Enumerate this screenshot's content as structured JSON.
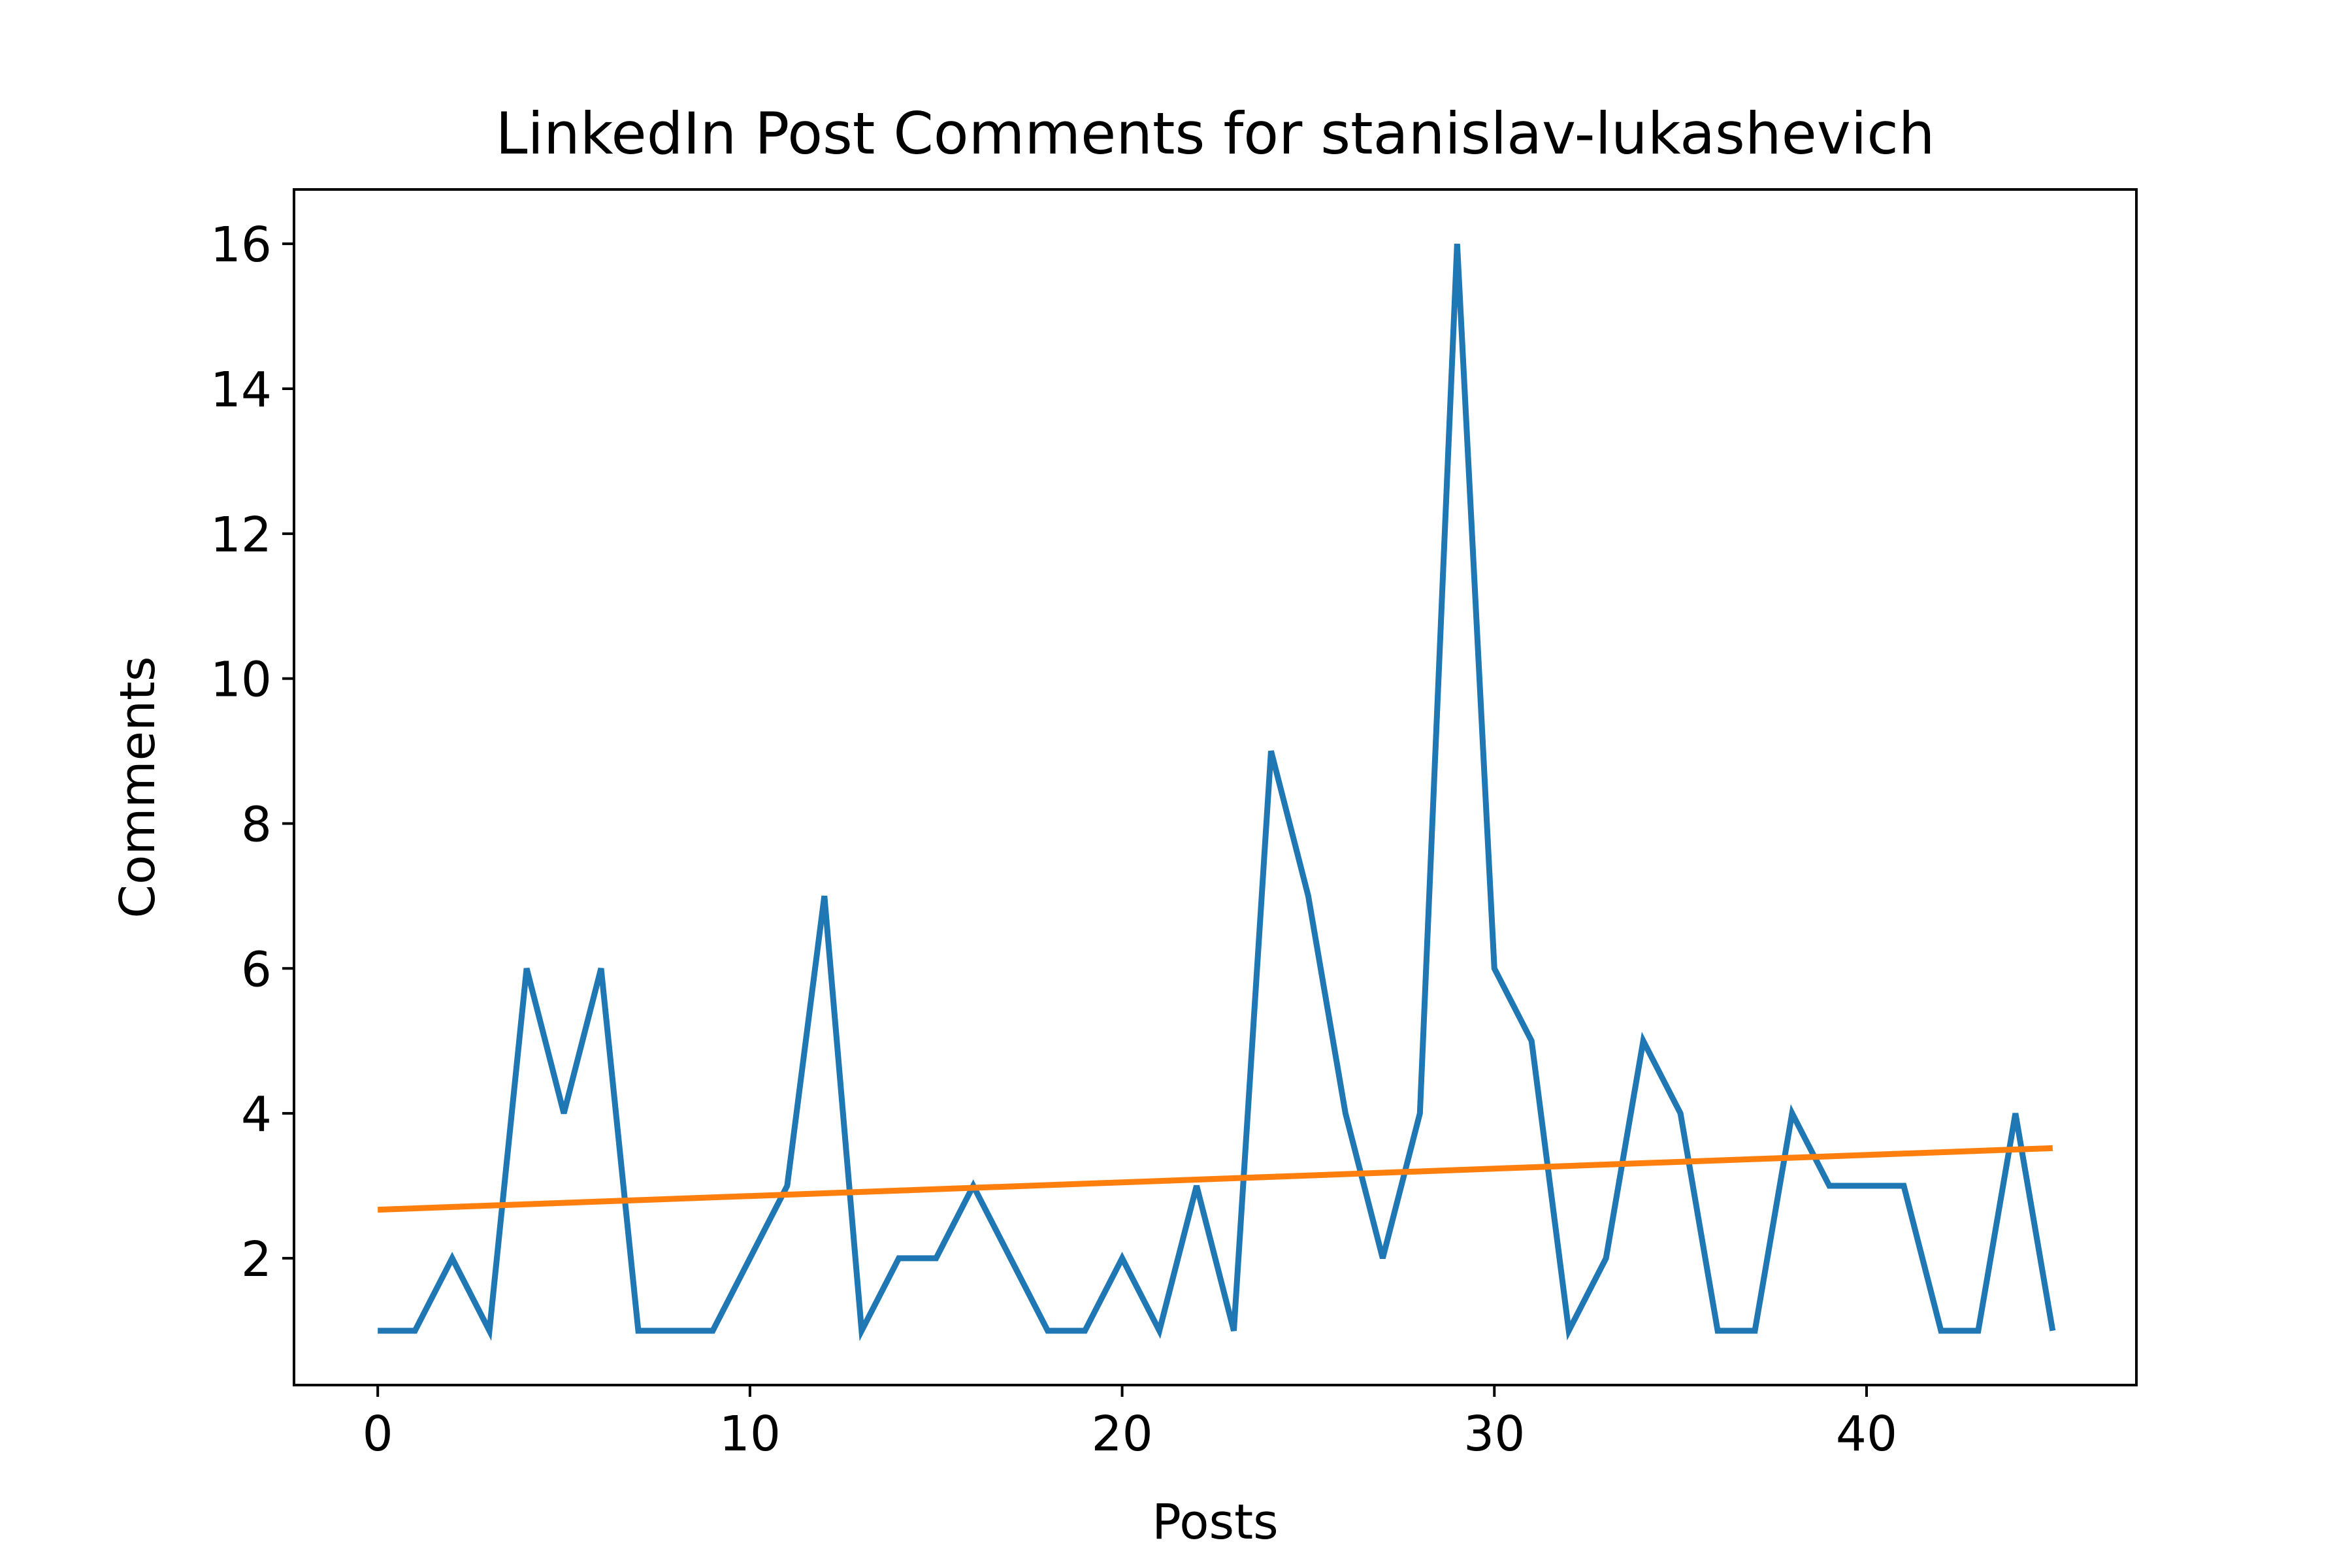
{
  "chart_data": {
    "type": "line",
    "title": "LinkedIn Post Comments for stanislav-lukashevich",
    "xlabel": "Posts",
    "ylabel": "Comments",
    "xlim": [
      -2.25,
      47.25
    ],
    "ylim": [
      0.25,
      16.75
    ],
    "xticks": [
      0,
      10,
      20,
      30,
      40
    ],
    "yticks": [
      2,
      4,
      6,
      8,
      10,
      12,
      14,
      16
    ],
    "grid": false,
    "legend": "none",
    "series": [
      {
        "color": "#1f77b4",
        "x": [
          0,
          1,
          2,
          3,
          4,
          5,
          6,
          7,
          8,
          9,
          10,
          11,
          12,
          13,
          14,
          15,
          16,
          17,
          18,
          19,
          20,
          21,
          22,
          23,
          24,
          25,
          26,
          27,
          28,
          29,
          30,
          31,
          32,
          33,
          34,
          35,
          36,
          37,
          38,
          39,
          40,
          41,
          42,
          43,
          44,
          45
        ],
        "values": [
          1,
          1,
          2,
          1,
          6,
          4,
          6,
          1,
          1,
          1,
          2,
          3,
          7,
          1,
          2,
          2,
          3,
          2,
          1,
          1,
          2,
          1,
          3,
          1,
          9,
          7,
          4,
          2,
          4,
          16,
          6,
          5,
          1,
          2,
          5,
          4,
          1,
          1,
          4,
          3,
          3,
          3,
          1,
          1,
          4,
          1
        ]
      },
      {
        "color": "#ff7f0e",
        "x": [
          0,
          45
        ],
        "values": [
          2.67,
          3.52
        ]
      }
    ]
  }
}
